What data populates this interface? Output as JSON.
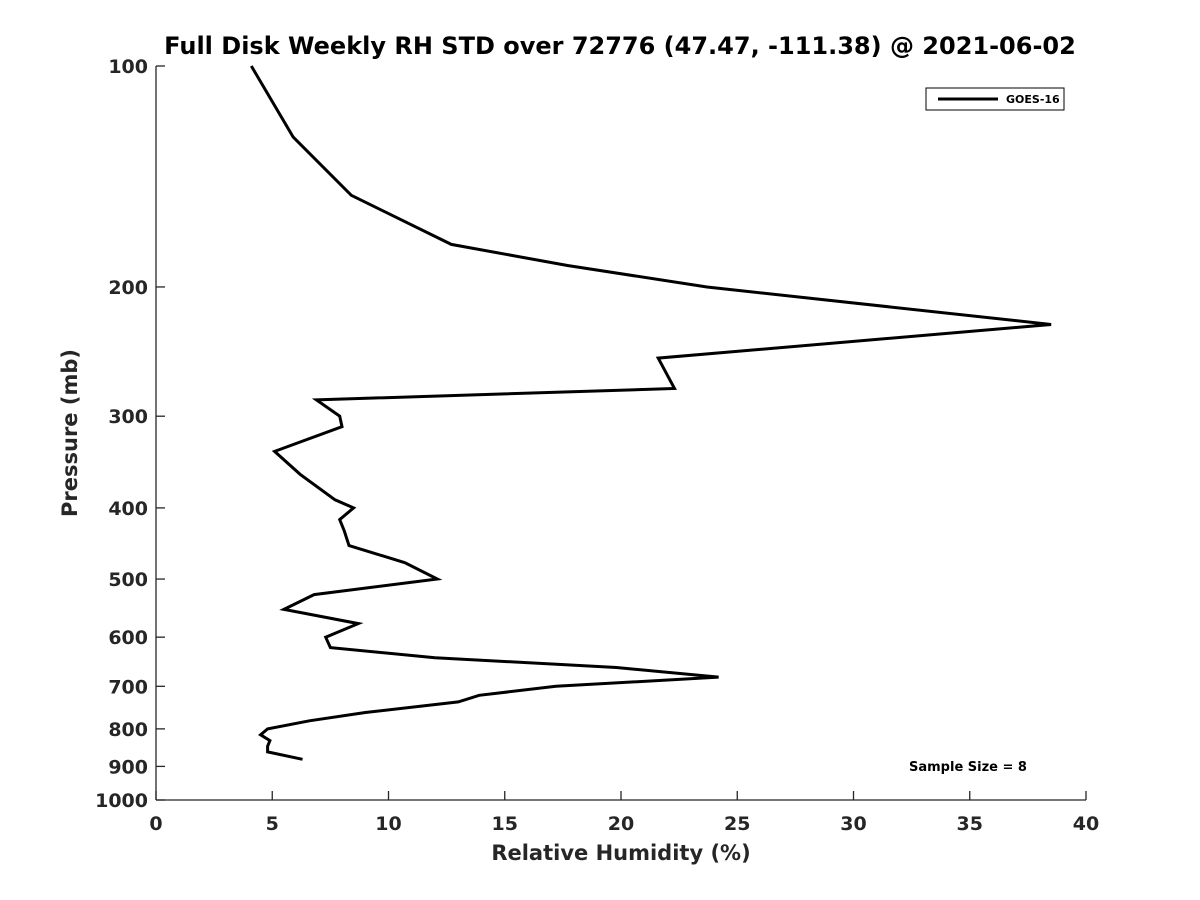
{
  "chart_data": {
    "type": "line",
    "title": "Full Disk Weekly RH STD over 72776 (47.47, -111.38) @ 2021-06-02",
    "xlabel": "Relative Humidity (%)",
    "ylabel": "Pressure (mb)",
    "xlim": [
      0,
      40
    ],
    "ylim": [
      1000,
      100
    ],
    "yscale": "log",
    "grid": false,
    "x_ticks": [
      0,
      5,
      10,
      15,
      20,
      25,
      30,
      35,
      40
    ],
    "x_tick_labels": [
      "0",
      "5",
      "10",
      "15",
      "20",
      "25",
      "30",
      "35",
      "40"
    ],
    "y_ticks": [
      100,
      200,
      300,
      400,
      500,
      600,
      700,
      800,
      900,
      1000
    ],
    "y_tick_labels": [
      "100",
      "200",
      "300",
      "400",
      "500",
      "600",
      "700",
      "800",
      "900",
      "1000"
    ],
    "legend_position": "top-right",
    "series": [
      {
        "name": "GOES-16",
        "color": "#000000",
        "points": [
          {
            "rh": 4.1,
            "p": 100
          },
          {
            "rh": 5.9,
            "p": 125
          },
          {
            "rh": 8.4,
            "p": 150
          },
          {
            "rh": 12.7,
            "p": 175
          },
          {
            "rh": 17.7,
            "p": 187
          },
          {
            "rh": 23.7,
            "p": 200
          },
          {
            "rh": 38.5,
            "p": 225
          },
          {
            "rh": 21.6,
            "p": 250
          },
          {
            "rh": 22.3,
            "p": 275
          },
          {
            "rh": 6.9,
            "p": 285
          },
          {
            "rh": 7.9,
            "p": 300
          },
          {
            "rh": 8.0,
            "p": 310
          },
          {
            "rh": 5.1,
            "p": 335
          },
          {
            "rh": 6.2,
            "p": 360
          },
          {
            "rh": 7.7,
            "p": 390
          },
          {
            "rh": 8.5,
            "p": 400
          },
          {
            "rh": 7.9,
            "p": 415
          },
          {
            "rh": 8.1,
            "p": 430
          },
          {
            "rh": 8.3,
            "p": 450
          },
          {
            "rh": 10.7,
            "p": 475
          },
          {
            "rh": 12.1,
            "p": 500
          },
          {
            "rh": 6.8,
            "p": 525
          },
          {
            "rh": 5.5,
            "p": 550
          },
          {
            "rh": 8.7,
            "p": 575
          },
          {
            "rh": 7.3,
            "p": 600
          },
          {
            "rh": 7.5,
            "p": 620
          },
          {
            "rh": 12.0,
            "p": 640
          },
          {
            "rh": 19.8,
            "p": 660
          },
          {
            "rh": 24.2,
            "p": 680
          },
          {
            "rh": 17.2,
            "p": 700
          },
          {
            "rh": 13.9,
            "p": 720
          },
          {
            "rh": 13.0,
            "p": 735
          },
          {
            "rh": 9.0,
            "p": 760
          },
          {
            "rh": 6.6,
            "p": 780
          },
          {
            "rh": 4.8,
            "p": 800
          },
          {
            "rh": 4.5,
            "p": 815
          },
          {
            "rh": 4.9,
            "p": 830
          },
          {
            "rh": 4.8,
            "p": 845
          },
          {
            "rh": 4.8,
            "p": 860
          },
          {
            "rh": 6.3,
            "p": 880
          }
        ]
      }
    ],
    "annotation": "Sample Size = 8"
  }
}
